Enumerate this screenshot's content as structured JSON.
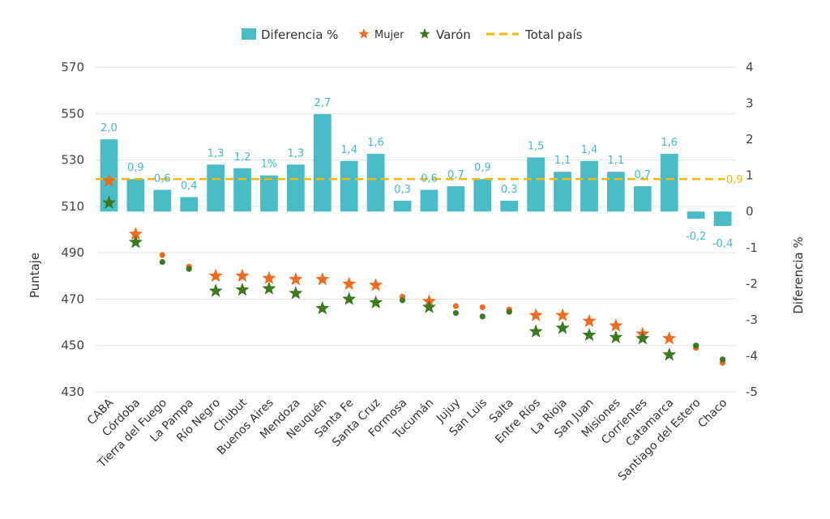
{
  "chart_data": {
    "type": "bar",
    "categories": [
      "CABA",
      "Córdoba",
      "Tierra del Fuego",
      "La Pampa",
      "Río Negro",
      "Chubut",
      "Buenos Aires",
      "Mendoza",
      "Neuquén",
      "Santa Fe",
      "Santa Cruz",
      "Formosa",
      "Tucumán",
      "Jujuy",
      "San Luis",
      "Salta",
      "Entre Ríos",
      "La Rioja",
      "San Juan",
      "Misiones",
      "Corrientes",
      "Catamarca",
      "Santiago del Estero",
      "Chaco"
    ],
    "series": [
      {
        "name": "Diferencia %",
        "axis": "right",
        "kind": "bar",
        "color": "#48bcc7",
        "values": [
          2.0,
          0.9,
          0.6,
          0.4,
          1.3,
          1.2,
          1.0,
          1.3,
          2.7,
          1.4,
          1.6,
          0.3,
          0.6,
          0.7,
          0.9,
          0.3,
          1.5,
          1.1,
          1.4,
          1.1,
          0.7,
          1.6,
          -0.2,
          -0.4
        ],
        "labels": [
          "2,0",
          "0,9",
          "0,6",
          "0,4",
          "1,3",
          "1,2",
          "1%",
          "1,3",
          "2,7",
          "1,4",
          "1,6",
          "0,3",
          "0,6",
          "0,7",
          "0,9",
          "0,3",
          "1,5",
          "1,1",
          "1,4",
          "1,1",
          "0,7",
          "1,6",
          "-0,2",
          "-0,4"
        ]
      },
      {
        "name": "Mujer",
        "axis": "left",
        "color": "#f26a1b",
        "values": [
          521,
          498,
          489,
          484,
          480,
          480,
          479,
          478.5,
          478.5,
          476.5,
          476,
          471,
          469,
          467,
          466.5,
          465.5,
          463,
          463,
          460.5,
          458.5,
          455,
          453,
          449,
          442.5
        ],
        "markers": [
          "star",
          "star",
          "dot",
          "dot",
          "star",
          "star",
          "star",
          "star",
          "star",
          "star",
          "star",
          "dot",
          "star",
          "dot",
          "dot",
          "dot",
          "star",
          "star",
          "star",
          "star",
          "star",
          "star",
          "dot",
          "dot"
        ]
      },
      {
        "name": "Varón",
        "axis": "left",
        "color": "#3c7a1f",
        "values": [
          511.5,
          494.5,
          486,
          483,
          473.5,
          474,
          474.5,
          472.5,
          466,
          470,
          468.5,
          469.5,
          466.5,
          464,
          462.5,
          464.5,
          456,
          457.5,
          454.5,
          453.5,
          453,
          446,
          450,
          444
        ],
        "markers": [
          "star",
          "star",
          "dot",
          "dot",
          "star",
          "star",
          "star",
          "star",
          "star",
          "star",
          "star",
          "dot",
          "star",
          "dot",
          "dot",
          "dot",
          "star",
          "star",
          "star",
          "star",
          "star",
          "star",
          "dot",
          "dot"
        ]
      },
      {
        "name": "Total país",
        "axis": "right",
        "kind": "line",
        "style": "dashed",
        "color": "#f5b800",
        "value": 0.9,
        "label": "0,9"
      }
    ],
    "y_left": {
      "label": "Puntaje",
      "range": [
        430,
        570
      ],
      "ticks": [
        "430",
        "450",
        "470",
        "490",
        "510",
        "530",
        "550",
        "570"
      ]
    },
    "y_right": {
      "label": "Diferencia %",
      "range": [
        -5,
        4
      ],
      "ticks": [
        "-5",
        "-4",
        "-3",
        "-2",
        "-1",
        "0",
        "1",
        "2",
        "3",
        "4"
      ]
    },
    "grid": true,
    "legend_position": "top-center"
  }
}
